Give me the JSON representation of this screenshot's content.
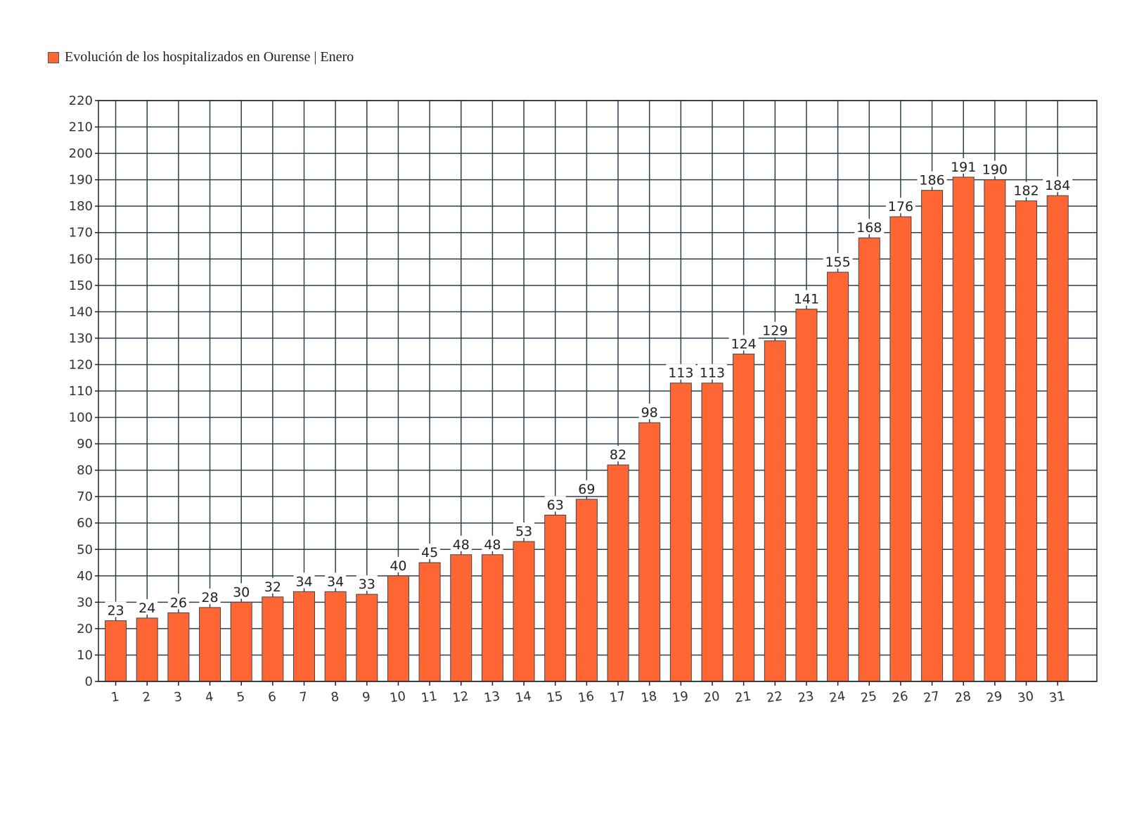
{
  "legend": {
    "label": "Evolución de los hospitalizados en Ourense | Enero"
  },
  "colors": {
    "bar": "#FF6633",
    "bar_stroke": "#444444",
    "grid": "#2b3f4f",
    "axis": "#222222"
  },
  "chart_data": {
    "type": "bar",
    "title": "",
    "xlabel": "",
    "ylabel": "",
    "grid": true,
    "legend_position": "top-left",
    "ylim": [
      0,
      220
    ],
    "ytick_step": 10,
    "categories": [
      "1",
      "2",
      "3",
      "4",
      "5",
      "6",
      "7",
      "8",
      "9",
      "10",
      "11",
      "12",
      "13",
      "14",
      "15",
      "16",
      "17",
      "18",
      "19",
      "20",
      "21",
      "22",
      "23",
      "24",
      "25",
      "26",
      "27",
      "28",
      "29",
      "30",
      "31"
    ],
    "series": [
      {
        "name": "Evolución de los hospitalizados en Ourense | Enero",
        "values": [
          23,
          24,
          26,
          28,
          30,
          32,
          34,
          34,
          33,
          40,
          45,
          48,
          48,
          53,
          63,
          69,
          82,
          98,
          113,
          113,
          124,
          129,
          141,
          155,
          168,
          176,
          186,
          191,
          190,
          182,
          184
        ]
      }
    ]
  }
}
